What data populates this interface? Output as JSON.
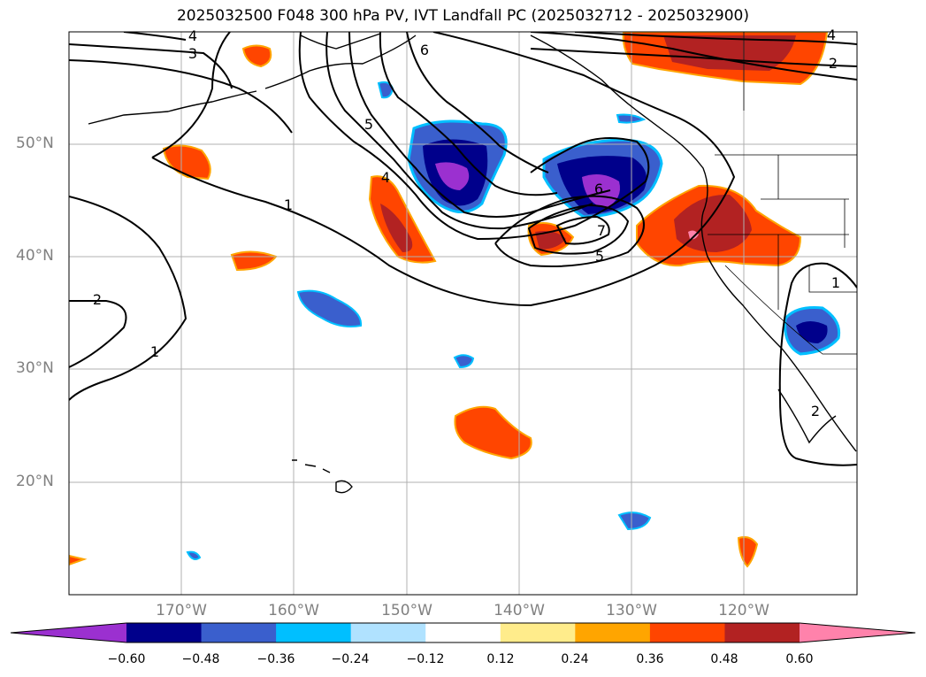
{
  "title": "2025032500 F048 300 hPa PV, IVT Landfall PC (2025032712 - 2025032900)",
  "latitude_labels": [
    "50°N",
    "40°N",
    "30°N",
    "20°N"
  ],
  "longitude_labels": [
    "170°W",
    "160°W",
    "150°W",
    "140°W",
    "130°W",
    "120°W"
  ],
  "pv_contour_labels": [
    "4",
    "3",
    "2",
    "1",
    "5",
    "6",
    "4",
    "6",
    "7",
    "5",
    "4",
    "2",
    "1",
    "1",
    "2"
  ],
  "colorbar": {
    "tick_labels": [
      "−0.60",
      "−0.48",
      "−0.36",
      "−0.24",
      "−0.12",
      "0.12",
      "0.24",
      "0.36",
      "0.48",
      "0.60"
    ],
    "colors": [
      "#9b30d0",
      "#00008b",
      "#3a5fcd",
      "#00bfff",
      "#b0e2ff",
      "#ffffff",
      "#ffec8b",
      "#ffa500",
      "#ff4500",
      "#b22222",
      "#ff82ab"
    ]
  }
}
